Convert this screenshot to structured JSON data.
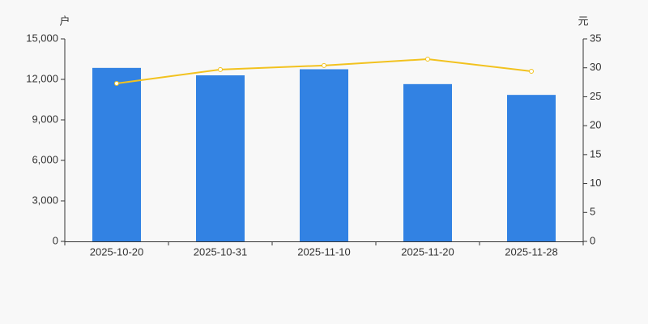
{
  "chart_data": {
    "type": "bar",
    "y_label": "户",
    "y2_label": "元",
    "categories": [
      "2025-10-20",
      "2025-10-31",
      "2025-11-10",
      "2025-11-20",
      "2025-11-28"
    ],
    "series": [
      {
        "type": "bar",
        "color": "#3282e3",
        "values": [
          12850,
          12300,
          12750,
          11650,
          10850
        ]
      },
      {
        "type": "line",
        "color": "#f2c21f",
        "axis": "y2",
        "values": [
          27.3,
          29.7,
          30.4,
          31.5,
          29.4
        ]
      }
    ],
    "ylim": [
      0,
      15000
    ],
    "yticks": [
      0,
      {
        "value": 3000,
        "label": "3,000"
      },
      {
        "value": 6000,
        "label": "6,000"
      },
      {
        "value": 9000,
        "label": "9,000"
      },
      {
        "value": 12000,
        "label": "12,000"
      },
      {
        "value": 15000,
        "label": "15,000"
      }
    ],
    "y2lim": [
      0,
      35
    ],
    "y2ticks": [
      0,
      5,
      10,
      15,
      20,
      25,
      30,
      35
    ]
  }
}
